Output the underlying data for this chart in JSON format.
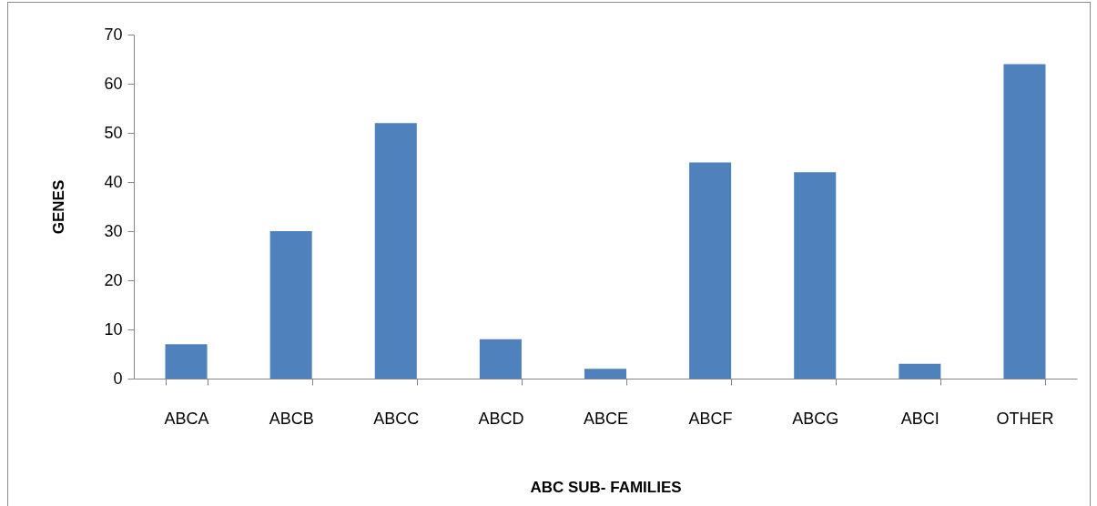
{
  "chart_data": {
    "type": "bar",
    "xlabel": "ABC SUB- FAMILIES",
    "ylabel": "GENES",
    "categories": [
      "ABCA",
      "ABCB",
      "ABCC",
      "ABCD",
      "ABCE",
      "ABCF",
      "ABCG",
      "ABCI",
      "OTHER"
    ],
    "values": [
      7,
      30,
      52,
      8,
      2,
      44,
      42,
      3,
      64
    ],
    "color": "#4f81bd",
    "ylim": [
      0,
      70
    ],
    "yticks": [
      0,
      10,
      20,
      30,
      40,
      50,
      60,
      70
    ],
    "grid": false
  }
}
